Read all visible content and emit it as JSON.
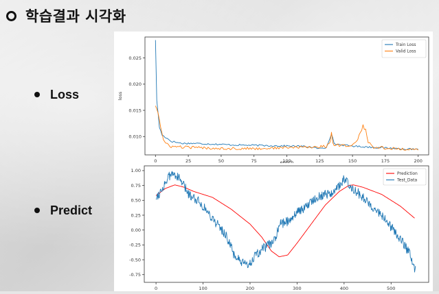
{
  "page": {
    "title": "학습결과 시각화",
    "bullets": [
      {
        "label": "Loss"
      },
      {
        "label": "Predict"
      }
    ]
  },
  "colors": {
    "blue": "#1f77b4",
    "orange": "#ff7f0e",
    "red": "#ff0000"
  },
  "chart_data": [
    {
      "type": "line",
      "title": "",
      "xlabel": "epoch",
      "ylabel": "loss",
      "xlim": [
        -8,
        208
      ],
      "ylim": [
        0.0065,
        0.029
      ],
      "xticks": [
        0,
        25,
        50,
        75,
        100,
        125,
        150,
        175,
        200
      ],
      "yticks": [
        0.01,
        0.015,
        0.02,
        0.025
      ],
      "ytick_labels": [
        "0.010",
        "0.015",
        "0.020",
        "0.025"
      ],
      "grid": false,
      "legend": "top-right",
      "series": [
        {
          "name": "Train Loss",
          "color": "#1f77b4",
          "keypoints": [
            [
              0,
              0.0285
            ],
            [
              1,
              0.0168
            ],
            [
              2,
              0.0145
            ],
            [
              3,
              0.0118
            ],
            [
              5,
              0.0103
            ],
            [
              8,
              0.0098
            ],
            [
              12,
              0.0091
            ],
            [
              20,
              0.0087
            ],
            [
              30,
              0.0087
            ],
            [
              40,
              0.0086
            ],
            [
              60,
              0.0084
            ],
            [
              80,
              0.0083
            ],
            [
              100,
              0.0082
            ],
            [
              115,
              0.0081
            ],
            [
              125,
              0.0077
            ],
            [
              130,
              0.0079
            ],
            [
              134,
              0.0106
            ],
            [
              136,
              0.0086
            ],
            [
              145,
              0.0083
            ],
            [
              155,
              0.0081
            ],
            [
              170,
              0.0079
            ],
            [
              185,
              0.0077
            ],
            [
              200,
              0.0075
            ]
          ],
          "noise": 0.00016
        },
        {
          "name": "Valid Loss",
          "color": "#ff7f0e",
          "keypoints": [
            [
              0,
              0.016
            ],
            [
              2,
              0.0146
            ],
            [
              4,
              0.0118
            ],
            [
              6,
              0.0093
            ],
            [
              8,
              0.0086
            ],
            [
              12,
              0.0081
            ],
            [
              20,
              0.008
            ],
            [
              40,
              0.0078
            ],
            [
              60,
              0.0077
            ],
            [
              80,
              0.0077
            ],
            [
              100,
              0.0079
            ],
            [
              120,
              0.008
            ],
            [
              130,
              0.0081
            ],
            [
              133,
              0.0092
            ],
            [
              134,
              0.0108
            ],
            [
              135,
              0.0086
            ],
            [
              140,
              0.0083
            ],
            [
              150,
              0.0083
            ],
            [
              154,
              0.0095
            ],
            [
              156,
              0.0107
            ],
            [
              158,
              0.012
            ],
            [
              160,
              0.0112
            ],
            [
              162,
              0.009
            ],
            [
              165,
              0.008
            ],
            [
              180,
              0.0077
            ],
            [
              200,
              0.0075
            ]
          ],
          "noise": 0.00026
        }
      ]
    },
    {
      "type": "line",
      "title": "",
      "xlabel": "",
      "ylabel": "",
      "xlim": [
        -25,
        580
      ],
      "ylim": [
        -0.88,
        1.08
      ],
      "xticks": [
        0,
        100,
        200,
        300,
        400,
        500
      ],
      "yticks": [
        1.0,
        0.75,
        0.5,
        0.25,
        0.0,
        -0.25,
        -0.5,
        -0.75
      ],
      "ytick_labels": [
        "1.00",
        "0.75",
        "0.50",
        "0.25",
        "0.00",
        "-0.25",
        "-0.50",
        "-0.75"
      ],
      "grid": false,
      "legend": "top-right",
      "series": [
        {
          "name": "Prediction",
          "color": "#ff0000",
          "keypoints": [
            [
              0,
              0.58
            ],
            [
              20,
              0.7
            ],
            [
              40,
              0.76
            ],
            [
              60,
              0.72
            ],
            [
              80,
              0.65
            ],
            [
              120,
              0.55
            ],
            [
              160,
              0.35
            ],
            [
              200,
              0.1
            ],
            [
              225,
              -0.12
            ],
            [
              245,
              -0.35
            ],
            [
              262,
              -0.45
            ],
            [
              280,
              -0.42
            ],
            [
              300,
              -0.22
            ],
            [
              330,
              0.1
            ],
            [
              360,
              0.42
            ],
            [
              390,
              0.65
            ],
            [
              410,
              0.75
            ],
            [
              420,
              0.76
            ],
            [
              440,
              0.72
            ],
            [
              480,
              0.6
            ],
            [
              520,
              0.4
            ],
            [
              550,
              0.2
            ]
          ],
          "noise": 0.0
        },
        {
          "name": "Test_Data",
          "color": "#1f77b4",
          "keypoints": [
            [
              0,
              0.55
            ],
            [
              10,
              0.65
            ],
            [
              20,
              0.8
            ],
            [
              30,
              0.92
            ],
            [
              40,
              0.95
            ],
            [
              55,
              0.8
            ],
            [
              70,
              0.6
            ],
            [
              90,
              0.5
            ],
            [
              110,
              0.3
            ],
            [
              130,
              0.1
            ],
            [
              150,
              -0.1
            ],
            [
              165,
              -0.4
            ],
            [
              180,
              -0.55
            ],
            [
              195,
              -0.6
            ],
            [
              210,
              -0.45
            ],
            [
              230,
              -0.3
            ],
            [
              250,
              -0.2
            ],
            [
              265,
              0.1
            ],
            [
              280,
              0.15
            ],
            [
              300,
              0.3
            ],
            [
              320,
              0.4
            ],
            [
              340,
              0.55
            ],
            [
              360,
              0.6
            ],
            [
              380,
              0.65
            ],
            [
              400,
              0.85
            ],
            [
              420,
              0.7
            ],
            [
              440,
              0.55
            ],
            [
              460,
              0.4
            ],
            [
              480,
              0.25
            ],
            [
              500,
              0.05
            ],
            [
              520,
              -0.15
            ],
            [
              540,
              -0.4
            ],
            [
              552,
              -0.68
            ]
          ],
          "noise": 0.08
        }
      ]
    }
  ]
}
